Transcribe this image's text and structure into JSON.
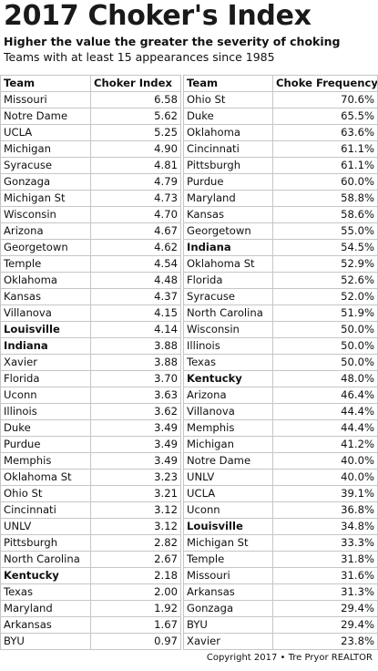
{
  "title": "2017 Choker's Index",
  "subtitle": "Higher the value the greater the severity of choking",
  "subtitle2": "Teams with at least 15 appearances since 1985",
  "left_table": {
    "headers": [
      "Team",
      "Choker Index"
    ],
    "rows": [
      {
        "team": "Missouri",
        "value": "6.58",
        "bold": false
      },
      {
        "team": "Notre Dame",
        "value": "5.62",
        "bold": false
      },
      {
        "team": "UCLA",
        "value": "5.25",
        "bold": false
      },
      {
        "team": "Michigan",
        "value": "4.90",
        "bold": false
      },
      {
        "team": "Syracuse",
        "value": "4.81",
        "bold": false
      },
      {
        "team": "Gonzaga",
        "value": "4.79",
        "bold": false
      },
      {
        "team": "Michigan St",
        "value": "4.73",
        "bold": false
      },
      {
        "team": "Wisconsin",
        "value": "4.70",
        "bold": false
      },
      {
        "team": "Arizona",
        "value": "4.67",
        "bold": false
      },
      {
        "team": "Georgetown",
        "value": "4.62",
        "bold": false
      },
      {
        "team": "Temple",
        "value": "4.54",
        "bold": false
      },
      {
        "team": "Oklahoma",
        "value": "4.48",
        "bold": false
      },
      {
        "team": "Kansas",
        "value": "4.37",
        "bold": false
      },
      {
        "team": "Villanova",
        "value": "4.15",
        "bold": false
      },
      {
        "team": "Louisville",
        "value": "4.14",
        "bold": true
      },
      {
        "team": "Indiana",
        "value": "3.88",
        "bold": true
      },
      {
        "team": "Xavier",
        "value": "3.88",
        "bold": false
      },
      {
        "team": "Florida",
        "value": "3.70",
        "bold": false
      },
      {
        "team": "Uconn",
        "value": "3.63",
        "bold": false
      },
      {
        "team": "Illinois",
        "value": "3.62",
        "bold": false
      },
      {
        "team": "Duke",
        "value": "3.49",
        "bold": false
      },
      {
        "team": "Purdue",
        "value": "3.49",
        "bold": false
      },
      {
        "team": "Memphis",
        "value": "3.49",
        "bold": false
      },
      {
        "team": "Oklahoma St",
        "value": "3.23",
        "bold": false
      },
      {
        "team": "Ohio St",
        "value": "3.21",
        "bold": false
      },
      {
        "team": "Cincinnati",
        "value": "3.12",
        "bold": false
      },
      {
        "team": "UNLV",
        "value": "3.12",
        "bold": false
      },
      {
        "team": "Pittsburgh",
        "value": "2.82",
        "bold": false
      },
      {
        "team": "North Carolina",
        "value": "2.67",
        "bold": false
      },
      {
        "team": "Kentucky",
        "value": "2.18",
        "bold": true
      },
      {
        "team": "Texas",
        "value": "2.00",
        "bold": false
      },
      {
        "team": "Maryland",
        "value": "1.92",
        "bold": false
      },
      {
        "team": "Arkansas",
        "value": "1.67",
        "bold": false
      },
      {
        "team": "BYU",
        "value": "0.97",
        "bold": false
      }
    ]
  },
  "right_table": {
    "headers": [
      "Team",
      "Choke Frequency"
    ],
    "rows": [
      {
        "team": "Ohio St",
        "value": "70.6%",
        "bold": false
      },
      {
        "team": "Duke",
        "value": "65.5%",
        "bold": false
      },
      {
        "team": "Oklahoma",
        "value": "63.6%",
        "bold": false
      },
      {
        "team": "Cincinnati",
        "value": "61.1%",
        "bold": false
      },
      {
        "team": "Pittsburgh",
        "value": "61.1%",
        "bold": false
      },
      {
        "team": "Purdue",
        "value": "60.0%",
        "bold": false
      },
      {
        "team": "Maryland",
        "value": "58.8%",
        "bold": false
      },
      {
        "team": "Kansas",
        "value": "58.6%",
        "bold": false
      },
      {
        "team": "Georgetown",
        "value": "55.0%",
        "bold": false
      },
      {
        "team": "Indiana",
        "value": "54.5%",
        "bold": true
      },
      {
        "team": "Oklahoma St",
        "value": "52.9%",
        "bold": false
      },
      {
        "team": "Florida",
        "value": "52.6%",
        "bold": false
      },
      {
        "team": "Syracuse",
        "value": "52.0%",
        "bold": false
      },
      {
        "team": "North Carolina",
        "value": "51.9%",
        "bold": false
      },
      {
        "team": "Wisconsin",
        "value": "50.0%",
        "bold": false
      },
      {
        "team": "Illinois",
        "value": "50.0%",
        "bold": false
      },
      {
        "team": "Texas",
        "value": "50.0%",
        "bold": false
      },
      {
        "team": "Kentucky",
        "value": "48.0%",
        "bold": true
      },
      {
        "team": "Arizona",
        "value": "46.4%",
        "bold": false
      },
      {
        "team": "Villanova",
        "value": "44.4%",
        "bold": false
      },
      {
        "team": "Memphis",
        "value": "44.4%",
        "bold": false
      },
      {
        "team": "Michigan",
        "value": "41.2%",
        "bold": false
      },
      {
        "team": "Notre Dame",
        "value": "40.0%",
        "bold": false
      },
      {
        "team": "UNLV",
        "value": "40.0%",
        "bold": false
      },
      {
        "team": "UCLA",
        "value": "39.1%",
        "bold": false
      },
      {
        "team": "Uconn",
        "value": "36.8%",
        "bold": false
      },
      {
        "team": "Louisville",
        "value": "34.8%",
        "bold": true
      },
      {
        "team": "Michigan St",
        "value": "33.3%",
        "bold": false
      },
      {
        "team": "Temple",
        "value": "31.8%",
        "bold": false
      },
      {
        "team": "Missouri",
        "value": "31.6%",
        "bold": false
      },
      {
        "team": "Arkansas",
        "value": "31.3%",
        "bold": false
      },
      {
        "team": "Gonzaga",
        "value": "29.4%",
        "bold": false
      },
      {
        "team": "BYU",
        "value": "29.4%",
        "bold": false
      },
      {
        "team": "Xavier",
        "value": "23.8%",
        "bold": false
      }
    ]
  },
  "footer": "Copyright 2017 • Tre Pryor REALTOR"
}
